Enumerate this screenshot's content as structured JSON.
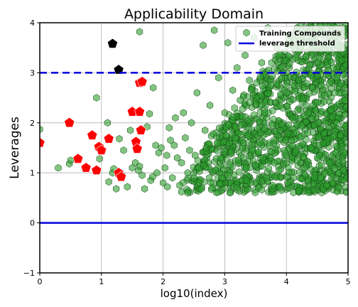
{
  "chart_data": {
    "type": "scatter",
    "title": "Applicability Domain",
    "xlabel": "log10(index)",
    "ylabel": "Leverages",
    "xlim": [
      0,
      5
    ],
    "ylim": [
      -1,
      4
    ],
    "xticks": [
      "0",
      "1",
      "2",
      "3",
      "4",
      "5"
    ],
    "yticks": [
      "−1",
      "0",
      "1",
      "2",
      "3",
      "4"
    ],
    "grid": true,
    "legend_position": "top-right",
    "legend": {
      "training_label": "Training Compounds",
      "threshold_label": "leverage threshold"
    },
    "leverage_threshold": 3.0,
    "zero_line": 0.0,
    "colors": {
      "training_fill": "#2e9e2e",
      "training_edge": "#114411",
      "outlier_fill": "#ff0000",
      "extreme_fill": "#000000",
      "threshold_line": "#0000dd",
      "zero_line": "#0000dd"
    },
    "series": [
      {
        "name": "Training Compounds",
        "marker": "hexagon",
        "x": [
          0.0,
          0.3,
          0.48,
          0.5,
          0.92,
          0.97,
          1.1,
          1.12,
          1.18,
          1.2,
          1.24,
          1.29,
          1.33,
          1.36,
          1.42,
          1.47,
          1.5,
          1.55,
          1.6,
          1.62,
          1.66,
          1.7,
          1.74,
          1.78,
          1.8,
          1.84,
          1.88,
          1.9,
          1.93,
          1.97,
          2.0,
          2.03,
          2.06,
          2.1,
          2.12,
          2.15,
          2.18,
          2.2,
          2.23,
          2.27,
          2.3,
          2.33,
          2.36,
          2.4,
          2.43,
          2.46,
          2.5,
          2.52,
          2.55,
          2.58,
          2.62,
          2.65,
          2.68,
          2.7,
          2.73,
          2.76,
          2.8,
          2.83,
          2.85,
          2.88,
          2.9,
          2.93,
          2.96,
          3.0,
          3.02,
          3.05,
          3.08,
          3.1,
          3.13,
          3.15,
          3.18,
          3.2,
          3.22,
          3.25,
          3.28,
          3.3,
          3.33,
          3.35,
          3.38,
          3.4,
          3.42,
          3.45,
          3.48,
          3.5,
          3.52,
          3.55,
          3.58,
          3.6,
          3.62,
          3.65,
          3.68,
          3.7,
          3.72,
          3.75,
          3.78,
          3.8,
          3.82,
          3.85,
          3.88,
          3.9,
          3.92,
          3.95,
          3.98,
          4.0,
          4.02,
          4.05,
          4.08,
          4.1,
          4.12,
          4.15,
          4.18,
          4.2,
          4.22,
          4.25,
          4.28,
          4.3,
          4.32,
          4.35,
          4.38,
          4.4,
          4.42,
          4.45,
          4.48,
          4.5,
          4.52,
          4.55,
          4.58,
          4.6,
          4.62,
          4.65,
          4.68,
          4.7,
          4.72,
          4.75,
          4.78,
          4.8,
          4.82,
          4.85,
          4.88,
          4.9,
          4.92,
          4.95,
          4.98,
          1.62,
          1.83,
          2.07,
          2.3,
          2.4,
          2.58,
          2.66,
          2.75,
          2.92,
          3.05,
          3.2,
          3.35,
          3.6,
          3.9,
          4.2,
          4.6
        ],
        "y": [
          1.87,
          1.1,
          1.18,
          1.25,
          2.5,
          1.28,
          2.0,
          0.82,
          1.0,
          1.08,
          0.68,
          1.68,
          0.95,
          1.45,
          0.72,
          1.85,
          1.1,
          1.2,
          1.05,
          3.82,
          0.95,
          0.68,
          1.92,
          2.18,
          0.85,
          2.7,
          1.55,
          1.0,
          1.4,
          1.5,
          0.8,
          1.1,
          1.35,
          1.9,
          1.65,
          0.9,
          1.55,
          2.1,
          1.3,
          0.75,
          1.2,
          2.2,
          1.7,
          0.6,
          1.45,
          2.0,
          0.9,
          1.35,
          2.6,
          1.1,
          0.68,
          3.55,
          1.85,
          1.5,
          1.2,
          2.35,
          0.7,
          3.85,
          1.05,
          1.6,
          2.9,
          1.3,
          0.9,
          2.2,
          1.75,
          3.6,
          1.0,
          1.4,
          2.65,
          0.72,
          1.9,
          3.1,
          1.25,
          2.45,
          0.85,
          1.6,
          3.35,
          1.1,
          2.05,
          2.85,
          0.8,
          1.45,
          3.7,
          1.15,
          2.5,
          0.7,
          1.8,
          3.2,
          1.3,
          2.2,
          0.9,
          3.9,
          1.55,
          2.75,
          0.75,
          1.2,
          2.4,
          3.5,
          1.05,
          1.85,
          0.65,
          3.0,
          1.4,
          2.6,
          0.8,
          3.75,
          1.65,
          2.1,
          0.9,
          3.3,
          1.25,
          2.85,
          0.7,
          1.95,
          3.6,
          1.1,
          2.35,
          0.85,
          3.15,
          1.5,
          2.7,
          0.65,
          3.85,
          1.3,
          2.0,
          0.9,
          3.45,
          1.6,
          2.55,
          0.75,
          3.05,
          1.2,
          2.25,
          0.8,
          3.7,
          1.4,
          2.9,
          0.7,
          1.75,
          3.25,
          1.05,
          2.45,
          0.9,
          1.13,
          0.92,
          0.72,
          0.62,
          1.0,
          0.8,
          1.15,
          0.9,
          0.78,
          0.95,
          0.7,
          0.85,
          0.66,
          0.7,
          0.64,
          0.66
        ]
      },
      {
        "name": "",
        "marker": "pentagon",
        "x": [
          0.0,
          0.48,
          0.62,
          0.75,
          0.85,
          0.92,
          0.96,
          1.0,
          1.12,
          1.28,
          1.32,
          1.5,
          1.56,
          1.58,
          1.62,
          1.62,
          1.64,
          1.66
        ],
        "y": [
          1.6,
          2.0,
          1.28,
          1.1,
          1.75,
          1.05,
          1.52,
          1.45,
          1.68,
          1.0,
          0.92,
          2.22,
          1.62,
          1.48,
          2.22,
          2.8,
          1.85,
          2.82
        ]
      },
      {
        "name": "",
        "marker": "pentagon",
        "x": [
          1.18,
          1.28
        ],
        "y": [
          3.58,
          3.06
        ]
      }
    ]
  }
}
